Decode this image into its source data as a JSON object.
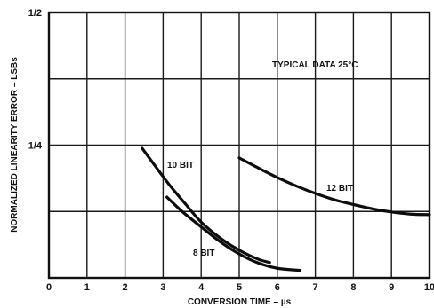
{
  "chart_data": {
    "type": "line",
    "title": "",
    "xlabel": "CONVERSION TIME – µs",
    "ylabel": "NORMALIZED LINEARITY ERROR – LSBs",
    "annotation": "TYPICAL DATA 25°C",
    "xlim": [
      0,
      10
    ],
    "ylim": [
      0,
      0.5
    ],
    "x_ticks": [
      "0",
      "1",
      "2",
      "3",
      "4",
      "5",
      "6",
      "7",
      "8",
      "9",
      "10"
    ],
    "y_ticks": [
      {
        "value": 0.25,
        "label": "1/4"
      },
      {
        "value": 0.5,
        "label": "1/2"
      }
    ],
    "y_gridlines": [
      0.125,
      0.25,
      0.375
    ],
    "grid": true,
    "series": [
      {
        "name": "10 BIT",
        "x": [
          2.45,
          2.8,
          3.2,
          3.6,
          4.0,
          4.5,
          5.0,
          5.5,
          5.8
        ],
        "y": [
          0.244,
          0.21,
          0.172,
          0.138,
          0.105,
          0.075,
          0.052,
          0.035,
          0.029
        ]
      },
      {
        "name": "8 BIT",
        "x": [
          3.1,
          3.5,
          4.0,
          4.5,
          5.0,
          5.5,
          6.0,
          6.6
        ],
        "y": [
          0.152,
          0.125,
          0.096,
          0.068,
          0.045,
          0.028,
          0.018,
          0.014
        ]
      },
      {
        "name": "12 BIT",
        "x": [
          5.0,
          5.5,
          6.0,
          6.5,
          7.0,
          7.5,
          8.0,
          8.5,
          9.0,
          9.5,
          10.0
        ],
        "y": [
          0.226,
          0.207,
          0.189,
          0.173,
          0.159,
          0.147,
          0.138,
          0.13,
          0.124,
          0.12,
          0.119
        ]
      }
    ]
  }
}
